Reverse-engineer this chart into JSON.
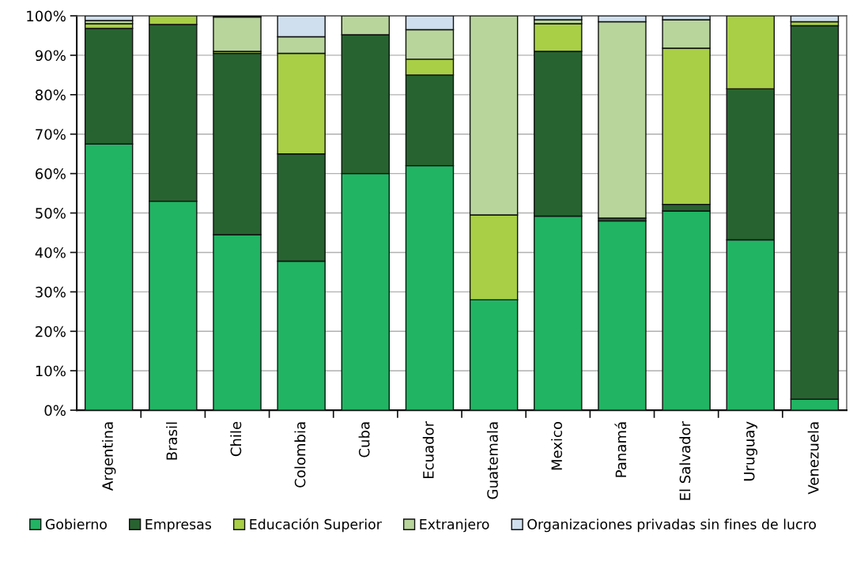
{
  "chart_data": {
    "type": "bar",
    "stacked": true,
    "categories": [
      "Argentina",
      "Brasil",
      "Chile",
      "Colombia",
      "Cuba",
      "Ecuador",
      "Guatemala",
      "Mexico",
      "Panamá",
      "El Salvador",
      "Uruguay",
      "Venezuela"
    ],
    "series": [
      {
        "name": "Gobierno",
        "color": "#21b463",
        "values": [
          67.5,
          53,
          44.5,
          37.8,
          60,
          62,
          28,
          49.2,
          48,
          50.5,
          43.2,
          2.8
        ]
      },
      {
        "name": "Empresas",
        "color": "#276330",
        "values": [
          29.3,
          44.8,
          46,
          27.2,
          35.2,
          23,
          0,
          41.8,
          0.7,
          1.7,
          38.3,
          94.7
        ]
      },
      {
        "name": "Educación Superior",
        "color": "#a8cf45",
        "values": [
          1.2,
          2.2,
          0.5,
          25.5,
          0,
          4,
          21.5,
          7,
          0,
          39.6,
          18.5,
          1
        ]
      },
      {
        "name": "Extranjero",
        "color": "#b8d59c",
        "values": [
          0.8,
          0,
          8.7,
          4.2,
          4.8,
          7.5,
          50.5,
          1,
          49.8,
          7.2,
          0,
          0
        ]
      },
      {
        "name": "Organizaciones privadas sin fines de lucro",
        "color": "#d0dfed",
        "values": [
          1.2,
          0,
          0.3,
          5.3,
          0,
          3.5,
          0,
          1,
          1.5,
          1,
          0,
          1.5
        ]
      }
    ],
    "ylim": [
      0,
      100
    ],
    "yticks": [
      {
        "value": 0,
        "label": "0%"
      },
      {
        "value": 10,
        "label": "10%"
      },
      {
        "value": 20,
        "label": "20%"
      },
      {
        "value": 30,
        "label": "30%"
      },
      {
        "value": 40,
        "label": "40%"
      },
      {
        "value": 50,
        "label": "50%"
      },
      {
        "value": 60,
        "label": "60%"
      },
      {
        "value": 70,
        "label": "70%"
      },
      {
        "value": 80,
        "label": "80%"
      },
      {
        "value": 90,
        "label": "90%"
      },
      {
        "value": 100,
        "label": "100%"
      }
    ],
    "grid": "y",
    "legend": "bottom"
  }
}
